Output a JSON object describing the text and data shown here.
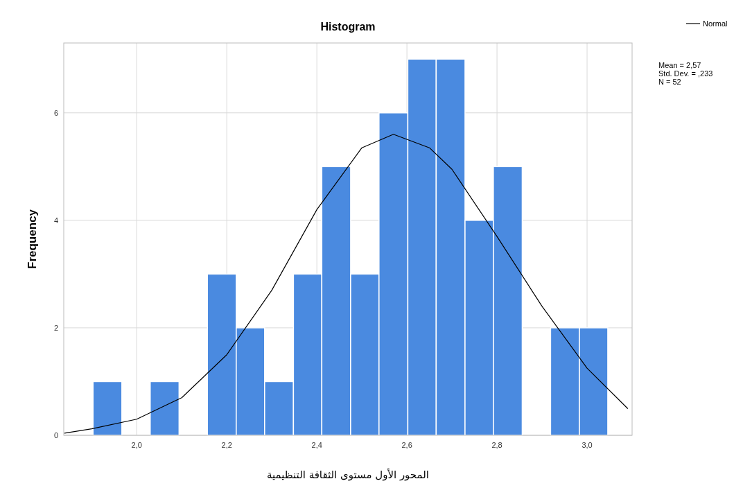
{
  "chart_data": {
    "type": "histogram",
    "title": "Histogram",
    "xlabel": "المحور الأول مستوى الثقافة التنظيمية",
    "ylabel": "Frequency",
    "bins": [
      1.903,
      1.967,
      2.03,
      2.094,
      2.157,
      2.221,
      2.284,
      2.348,
      2.411,
      2.475,
      2.538,
      2.602,
      2.665,
      2.729,
      2.792,
      2.856,
      2.919,
      2.983,
      3.046
    ],
    "values": [
      1,
      0,
      1,
      0,
      3,
      2,
      1,
      3,
      5,
      3,
      6,
      7,
      7,
      4,
      5,
      0,
      2,
      2
    ],
    "color": "#4a8ae0",
    "series": [
      {
        "name": "Normal",
        "type": "line",
        "color": "#000000",
        "x": [
          1.84,
          1.9,
          2.0,
          2.1,
          2.2,
          2.3,
          2.4,
          2.5,
          2.57,
          2.65,
          2.7,
          2.8,
          2.9,
          3.0,
          3.09
        ],
        "values": [
          0.04,
          0.12,
          0.3,
          0.7,
          1.5,
          2.7,
          4.2,
          5.35,
          5.6,
          5.35,
          4.95,
          3.7,
          2.4,
          1.25,
          0.5
        ]
      }
    ],
    "xlim": [
      1.838,
      3.1
    ],
    "ylim": [
      0,
      7.3
    ],
    "xticks": [
      {
        "value": 2.0,
        "label": "2,0"
      },
      {
        "value": 2.2,
        "label": "2,2"
      },
      {
        "value": 2.4,
        "label": "2,4"
      },
      {
        "value": 2.6,
        "label": "2,6"
      },
      {
        "value": 2.8,
        "label": "2,8"
      },
      {
        "value": 3.0,
        "label": "3,0"
      }
    ],
    "yticks": [
      0,
      2,
      4,
      6
    ],
    "grid": true,
    "legend": "top right",
    "annotations": [
      "Mean = 2,57",
      "Std. Dev. = ,233",
      "N = 52"
    ]
  }
}
